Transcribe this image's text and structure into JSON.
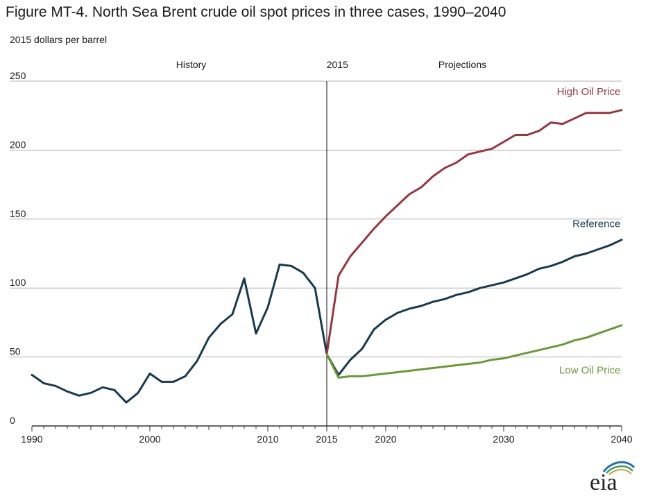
{
  "title": "Figure MT-4. North Sea Brent crude oil spot prices in three cases, 1990–2040",
  "y_unit_label": "2015 dollars per barrel",
  "logo_text": "eia",
  "colors": {
    "high": "#9b3440",
    "reference": "#163a4e",
    "low": "#6a9a34",
    "grid": "#b0b0b0",
    "axis": "#333333",
    "text": "#1a1a1a"
  },
  "chart_data": {
    "type": "line",
    "title": "Figure MT-4. North Sea Brent crude oil spot prices in three cases, 1990–2040",
    "ylabel": "2015 dollars per barrel",
    "xlabel": "",
    "xlim": [
      1990,
      2040
    ],
    "ylim": [
      0,
      250
    ],
    "x_ticks": [
      1990,
      2000,
      2010,
      2015,
      2020,
      2030,
      2040
    ],
    "y_ticks": [
      0,
      50,
      100,
      150,
      200,
      250
    ],
    "grid": "horizontal",
    "divider_x": 2015,
    "region_labels": [
      {
        "text": "History",
        "x": 2003.5
      },
      {
        "text": "2015",
        "x": 2015.9
      },
      {
        "text": "Projections",
        "x": 2026.5
      }
    ],
    "series": [
      {
        "name": "Reference",
        "key": "reference",
        "label_x": 2039.9,
        "label_y": 144,
        "x": [
          1990,
          1991,
          1992,
          1993,
          1994,
          1995,
          1996,
          1997,
          1998,
          1999,
          2000,
          2001,
          2002,
          2003,
          2004,
          2005,
          2006,
          2007,
          2008,
          2009,
          2010,
          2011,
          2012,
          2013,
          2014,
          2015,
          2016,
          2017,
          2018,
          2019,
          2020,
          2021,
          2022,
          2023,
          2024,
          2025,
          2026,
          2027,
          2028,
          2029,
          2030,
          2031,
          2032,
          2033,
          2034,
          2035,
          2036,
          2037,
          2038,
          2039,
          2040
        ],
        "values": [
          37,
          31,
          29,
          25,
          22,
          24,
          28,
          26,
          17,
          24,
          38,
          32,
          32,
          36,
          47,
          64,
          74,
          81,
          107,
          67,
          86,
          117,
          116,
          111,
          100,
          52,
          37,
          48,
          56,
          70,
          77,
          82,
          85,
          87,
          90,
          92,
          95,
          97,
          100,
          102,
          104,
          107,
          110,
          114,
          116,
          119,
          123,
          125,
          128,
          131,
          135
        ]
      },
      {
        "name": "High Oil Price",
        "key": "high",
        "label_x": 2039.9,
        "label_y": 240,
        "x": [
          2015,
          2016,
          2017,
          2018,
          2019,
          2020,
          2021,
          2022,
          2023,
          2024,
          2025,
          2026,
          2027,
          2028,
          2029,
          2030,
          2031,
          2032,
          2033,
          2034,
          2035,
          2036,
          2037,
          2038,
          2039,
          2040
        ],
        "values": [
          52,
          109,
          123,
          133,
          143,
          152,
          160,
          168,
          173,
          181,
          187,
          191,
          197,
          199,
          201,
          206,
          211,
          211,
          214,
          220,
          219,
          223,
          227,
          227,
          227,
          229
        ]
      },
      {
        "name": "Low Oil Price",
        "key": "low",
        "label_x": 2039.9,
        "label_y": 38,
        "x": [
          2015,
          2016,
          2017,
          2018,
          2019,
          2020,
          2021,
          2022,
          2023,
          2024,
          2025,
          2026,
          2027,
          2028,
          2029,
          2030,
          2031,
          2032,
          2033,
          2034,
          2035,
          2036,
          2037,
          2038,
          2039,
          2040
        ],
        "values": [
          52,
          35,
          36,
          36,
          37,
          38,
          39,
          40,
          41,
          42,
          43,
          44,
          45,
          46,
          48,
          49,
          51,
          53,
          55,
          57,
          59,
          62,
          64,
          67,
          70,
          73
        ]
      }
    ]
  }
}
